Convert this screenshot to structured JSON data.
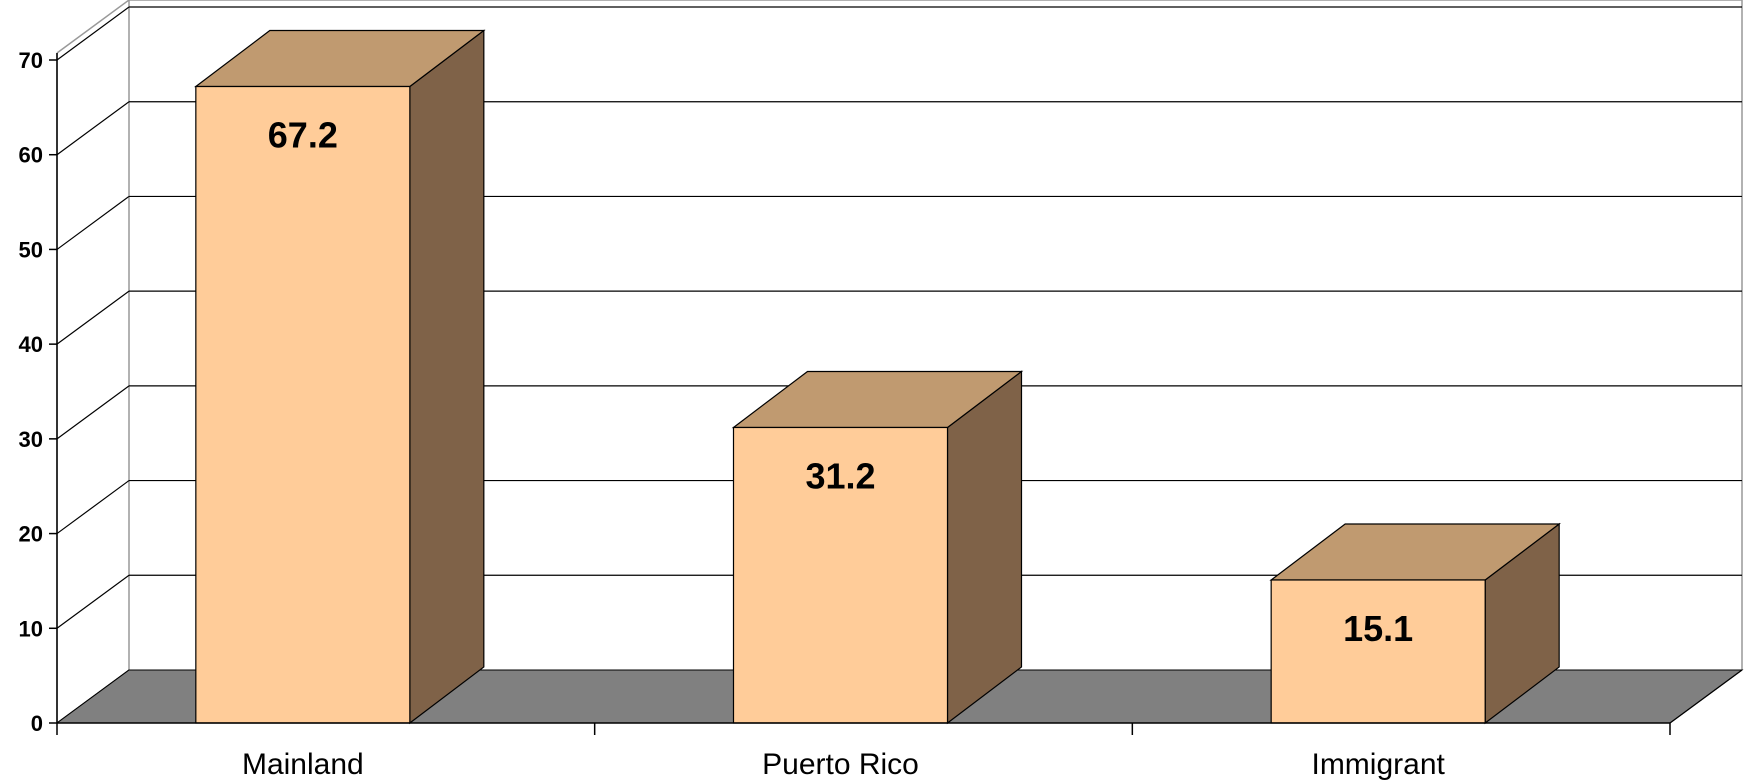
{
  "chart_data": {
    "type": "bar",
    "title": "",
    "xlabel": "",
    "ylabel": "",
    "categories": [
      "Mainland",
      "Puerto Rico",
      "Immigrant"
    ],
    "values": [
      67.2,
      31.2,
      15.1
    ],
    "data_labels": [
      "67.2",
      "31.2",
      "15.1"
    ],
    "ylim": [
      0,
      70
    ],
    "yticks": [
      0,
      10,
      20,
      30,
      40,
      50,
      60,
      70
    ],
    "ytick_labels": [
      "0",
      "10",
      "20",
      "30",
      "40",
      "50",
      "60",
      "70"
    ],
    "grid": true,
    "legend": "none",
    "style": "3d-column",
    "colors": {
      "bar_front": "#FFCC99",
      "bar_top": "#C09A70",
      "bar_side": "#7F6248",
      "floor": "#808080",
      "gridline": "#000000",
      "frame": "#999999"
    }
  }
}
